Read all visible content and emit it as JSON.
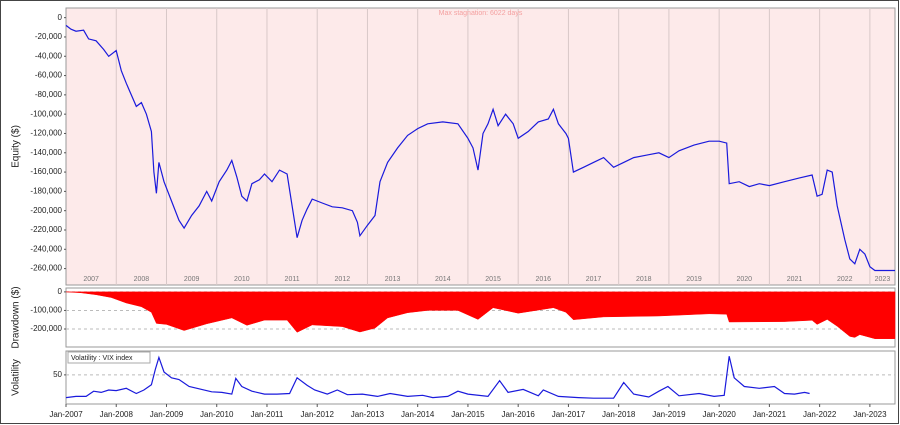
{
  "chart_data": [
    {
      "type": "line",
      "title": "Max stagnation: 6022 days",
      "ylabel": "Equity ($)",
      "color": "#1a1adc",
      "background": "#fdeaea",
      "year_labels": [
        "2007",
        "2008",
        "2009",
        "2010",
        "2011",
        "2012",
        "2013",
        "2014",
        "2015",
        "2016",
        "2017",
        "2018",
        "2019",
        "2020",
        "2021",
        "2022",
        "2023"
      ],
      "xlim": [
        2007,
        2023.5
      ],
      "ylim": [
        -277000,
        10000
      ],
      "yticks": [
        0,
        {
          "value": -20000,
          "label": "-20,000"
        },
        {
          "value": -40000,
          "label": "-40,000"
        },
        {
          "value": -60000,
          "label": "-60,000"
        },
        {
          "value": -80000,
          "label": "-80,000"
        },
        {
          "value": -100000,
          "label": "-100,000"
        },
        {
          "value": -120000,
          "label": "-120,000"
        },
        {
          "value": -140000,
          "label": "-140,000"
        },
        {
          "value": -160000,
          "label": "-160,000"
        },
        {
          "value": -180000,
          "label": "-180,000"
        },
        {
          "value": -200000,
          "label": "-200,000"
        },
        {
          "value": -220000,
          "label": "-220,000"
        },
        {
          "value": -240000,
          "label": "-240,000"
        },
        {
          "value": -260000,
          "label": "-260,000"
        }
      ],
      "x": [
        2007.0,
        2007.1,
        2007.2,
        2007.35,
        2007.45,
        2007.6,
        2007.75,
        2007.85,
        2008.0,
        2008.1,
        2008.2,
        2008.3,
        2008.4,
        2008.5,
        2008.6,
        2008.7,
        2008.75,
        2008.8,
        2008.85,
        2008.95,
        2009.1,
        2009.25,
        2009.35,
        2009.5,
        2009.65,
        2009.8,
        2009.9,
        2010.05,
        2010.2,
        2010.3,
        2010.4,
        2010.5,
        2010.6,
        2010.7,
        2010.85,
        2010.95,
        2011.1,
        2011.25,
        2011.4,
        2011.5,
        2011.6,
        2011.7,
        2011.8,
        2011.9,
        2012.1,
        2012.3,
        2012.5,
        2012.7,
        2012.8,
        2012.85,
        2013.0,
        2013.15,
        2013.25,
        2013.4,
        2013.6,
        2013.8,
        2014.0,
        2014.2,
        2014.5,
        2014.8,
        2015.0,
        2015.1,
        2015.2,
        2015.3,
        2015.4,
        2015.5,
        2015.6,
        2015.75,
        2015.9,
        2016.0,
        2016.2,
        2016.4,
        2016.6,
        2016.7,
        2016.8,
        2016.95,
        2017.0,
        2017.1,
        2017.3,
        2017.5,
        2017.7,
        2017.9,
        2018.1,
        2018.3,
        2018.6,
        2018.8,
        2019.0,
        2019.2,
        2019.5,
        2019.8,
        2020.0,
        2020.15,
        2020.2,
        2020.4,
        2020.6,
        2020.8,
        2021.0,
        2021.3,
        2021.6,
        2021.85,
        2021.95,
        2022.05,
        2022.15,
        2022.25,
        2022.35,
        2022.5,
        2022.6,
        2022.7,
        2022.8,
        2022.9,
        2023.0,
        2023.1,
        2023.5
      ],
      "values": [
        -8000,
        -12000,
        -14000,
        -13000,
        -22000,
        -24000,
        -33000,
        -40000,
        -34000,
        -55000,
        -68000,
        -80000,
        -92000,
        -88000,
        -100000,
        -118000,
        -160000,
        -182000,
        -150000,
        -170000,
        -190000,
        -210000,
        -218000,
        -205000,
        -195000,
        -180000,
        -190000,
        -170000,
        -158000,
        -148000,
        -165000,
        -185000,
        -190000,
        -172000,
        -168000,
        -162000,
        -170000,
        -158000,
        -162000,
        -195000,
        -228000,
        -210000,
        -198000,
        -188000,
        -192000,
        -196000,
        -197000,
        -200000,
        -212000,
        -226000,
        -215000,
        -205000,
        -170000,
        -150000,
        -135000,
        -122000,
        -115000,
        -110000,
        -108000,
        -110000,
        -125000,
        -135000,
        -158000,
        -120000,
        -110000,
        -95000,
        -112000,
        -100000,
        -110000,
        -125000,
        -118000,
        -108000,
        -105000,
        -95000,
        -110000,
        -120000,
        -125000,
        -160000,
        -155000,
        -150000,
        -145000,
        -155000,
        -150000,
        -145000,
        -142000,
        -140000,
        -145000,
        -138000,
        -132000,
        -128000,
        -128000,
        -130000,
        -172000,
        -170000,
        -175000,
        -172000,
        -174000,
        -170000,
        -166000,
        -163000,
        -185000,
        -183000,
        -158000,
        -160000,
        -195000,
        -230000,
        -250000,
        -255000,
        -240000,
        -245000,
        -258000,
        -262000,
        -262000
      ]
    },
    {
      "type": "area",
      "ylabel": "Drawdown ($)",
      "color": "#ff0000",
      "xlim": [
        2007,
        2023.5
      ],
      "ylim": [
        -297000,
        21000
      ],
      "yticks": [
        0,
        {
          "value": -100000,
          "label": "-100,000"
        },
        {
          "value": -200000,
          "label": "-200,000"
        }
      ],
      "grid": true,
      "x": [
        2007.0,
        2007.3,
        2007.6,
        2007.9,
        2008.2,
        2008.5,
        2008.7,
        2008.8,
        2009.0,
        2009.35,
        2009.8,
        2010.3,
        2010.6,
        2010.95,
        2011.4,
        2011.6,
        2011.9,
        2012.5,
        2012.85,
        2013.15,
        2013.4,
        2013.8,
        2014.2,
        2014.8,
        2015.2,
        2015.5,
        2016.0,
        2016.7,
        2016.95,
        2017.1,
        2017.7,
        2018.8,
        2019.8,
        2020.15,
        2020.2,
        2021.3,
        2021.85,
        2021.95,
        2022.15,
        2022.35,
        2022.6,
        2022.7,
        2022.8,
        2023.1,
        2023.5
      ],
      "values": [
        0,
        -5000,
        -15000,
        -30000,
        -60000,
        -80000,
        -110000,
        -170000,
        -175000,
        -208000,
        -172000,
        -140000,
        -180000,
        -152000,
        -152000,
        -218000,
        -178000,
        -187000,
        -216000,
        -195000,
        -140000,
        -112000,
        -100000,
        -100000,
        -148000,
        -85000,
        -115000,
        -85000,
        -110000,
        -150000,
        -135000,
        -130000,
        -118000,
        -120000,
        -162000,
        -160000,
        -153000,
        -175000,
        -148000,
        -185000,
        -240000,
        -245000,
        -230000,
        -252000,
        -252000
      ]
    },
    {
      "type": "line",
      "ylabel": "Volatility",
      "name": "Volatility : VIX index",
      "color": "#1a1adc",
      "xlim": [
        2007,
        2023.5
      ],
      "ylim": [
        0,
        91
      ],
      "yticks": [
        50
      ],
      "grid": true,
      "xticks": [
        {
          "value": 2007,
          "label": "Jan-2007"
        },
        {
          "value": 2008,
          "label": "Jan-2008"
        },
        {
          "value": 2009,
          "label": "Jan-2009"
        },
        {
          "value": 2010,
          "label": "Jan-2010"
        },
        {
          "value": 2011,
          "label": "Jan-2011"
        },
        {
          "value": 2012,
          "label": "Jan-2012"
        },
        {
          "value": 2013,
          "label": "Jan-2013"
        },
        {
          "value": 2014,
          "label": "Jan-2014"
        },
        {
          "value": 2015,
          "label": "Jan-2015"
        },
        {
          "value": 2016,
          "label": "Jan-2016"
        },
        {
          "value": 2017,
          "label": "Jan-2017"
        },
        {
          "value": 2018,
          "label": "Jan-2018"
        },
        {
          "value": 2019,
          "label": "Jan-2019"
        },
        {
          "value": 2020,
          "label": "Jan-2020"
        },
        {
          "value": 2021,
          "label": "Jan-2021"
        },
        {
          "value": 2022,
          "label": "Jan-2022"
        },
        {
          "value": 2023,
          "label": "Jan-2023"
        }
      ],
      "x": [
        2007.0,
        2007.2,
        2007.4,
        2007.55,
        2007.7,
        2007.85,
        2008.0,
        2008.2,
        2008.4,
        2008.55,
        2008.7,
        2008.78,
        2008.85,
        2008.95,
        2009.1,
        2009.25,
        2009.45,
        2009.7,
        2009.9,
        2010.1,
        2010.3,
        2010.38,
        2010.5,
        2010.7,
        2010.95,
        2011.2,
        2011.45,
        2011.6,
        2011.8,
        2011.95,
        2012.2,
        2012.4,
        2012.6,
        2012.9,
        2013.2,
        2013.45,
        2013.8,
        2014.1,
        2014.3,
        2014.6,
        2014.8,
        2015.0,
        2015.4,
        2015.63,
        2015.8,
        2016.1,
        2016.4,
        2016.5,
        2016.8,
        2017.2,
        2017.5,
        2017.9,
        2018.1,
        2018.3,
        2018.6,
        2018.8,
        2018.98,
        2019.2,
        2019.6,
        2019.9,
        2020.1,
        2020.2,
        2020.3,
        2020.5,
        2020.8,
        2021.1,
        2021.3,
        2021.5,
        2021.7,
        2021.8
      ],
      "values": [
        11,
        13,
        13,
        22,
        20,
        24,
        23,
        27,
        18,
        24,
        33,
        60,
        80,
        55,
        45,
        42,
        30,
        25,
        21,
        20,
        17,
        44,
        30,
        22,
        17,
        17,
        18,
        45,
        32,
        24,
        17,
        24,
        16,
        17,
        13,
        18,
        13,
        15,
        11,
        13,
        22,
        17,
        13,
        40,
        20,
        25,
        14,
        24,
        13,
        11,
        10,
        10,
        37,
        17,
        12,
        22,
        30,
        14,
        18,
        13,
        15,
        82,
        45,
        30,
        27,
        30,
        18,
        17,
        20,
        18
      ]
    }
  ]
}
